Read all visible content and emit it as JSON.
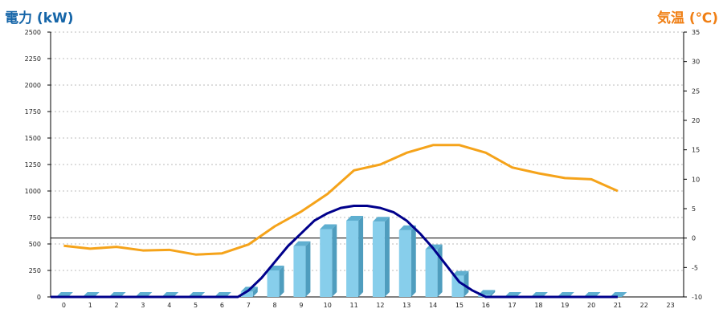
{
  "chart_data": {
    "type": "bar",
    "ylabel": "電力 (kW)",
    "y2label": "気温 (℃)",
    "colors": {
      "bar_front": "#87CEEB",
      "bar_side": "#4F9DBE",
      "bar_top": "#5FAFD0",
      "power_line": "#00008B",
      "temp_line": "#F5A31A",
      "ylabel": "#1565A8",
      "y2label": "#F07F14",
      "grid": "#BBBBBB"
    },
    "grid": true,
    "ylim": [
      0,
      2500
    ],
    "y2lim": [
      -10,
      35
    ],
    "yticks": [
      0,
      250,
      500,
      750,
      1000,
      1250,
      1500,
      1750,
      2000,
      2250,
      2500
    ],
    "y2ticks": [
      -10,
      -5,
      0,
      5,
      10,
      15,
      20,
      25,
      30,
      35
    ],
    "categories": [
      "0",
      "1",
      "2",
      "3",
      "4",
      "5",
      "6",
      "7",
      "8",
      "9",
      "10",
      "11",
      "12",
      "13",
      "14",
      "15",
      "16",
      "17",
      "18",
      "19",
      "20",
      "21",
      "22",
      "23"
    ],
    "series": [
      {
        "kind": "bar",
        "axis": "left",
        "values": [
          0,
          0,
          0,
          0,
          0,
          0,
          0,
          50,
          250,
          480,
          640,
          720,
          710,
          630,
          450,
          200,
          20,
          0,
          0,
          0,
          0,
          0,
          null,
          null
        ]
      },
      {
        "kind": "line",
        "axis": "left",
        "x": [
          6.6,
          7,
          7.5,
          8,
          8.5,
          9,
          9.5,
          10,
          10.5,
          11,
          11.5,
          12,
          12.5,
          13,
          13.5,
          14,
          14.5,
          15,
          15.5,
          16,
          16.5,
          17,
          18,
          19,
          20,
          21
        ],
        "values": [
          0,
          60,
          180,
          330,
          480,
          600,
          720,
          790,
          840,
          860,
          860,
          840,
          800,
          720,
          600,
          460,
          300,
          140,
          60,
          0,
          0,
          0,
          0,
          0,
          0,
          0
        ]
      },
      {
        "kind": "line",
        "axis": "right",
        "values": [
          -1.3,
          -1.8,
          -1.5,
          -2.1,
          -2.0,
          -2.8,
          -2.6,
          -1.1,
          2.0,
          4.5,
          7.5,
          11.5,
          12.5,
          14.5,
          15.8,
          15.8,
          14.5,
          12.0,
          11.0,
          10.2,
          10.0,
          8.0,
          null,
          null
        ]
      }
    ]
  }
}
